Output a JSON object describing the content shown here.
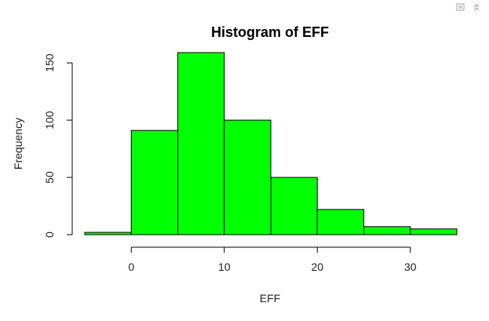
{
  "toolbar": {
    "icons": [
      "popout-icon",
      "collapse-up-icon"
    ]
  },
  "colors": {
    "bar_fill": "#00ff00",
    "bar_stroke": "#000000",
    "axis": "#000000"
  },
  "chart_data": {
    "type": "bar",
    "title": "Histogram of EFF",
    "xlabel": "EFF",
    "ylabel": "Frequency",
    "bins": [
      {
        "start": -5,
        "end": 0,
        "count": 2
      },
      {
        "start": 0,
        "end": 5,
        "count": 91
      },
      {
        "start": 5,
        "end": 10,
        "count": 159
      },
      {
        "start": 10,
        "end": 15,
        "count": 100
      },
      {
        "start": 15,
        "end": 20,
        "count": 50
      },
      {
        "start": 20,
        "end": 25,
        "count": 22
      },
      {
        "start": 25,
        "end": 30,
        "count": 7
      },
      {
        "start": 30,
        "end": 35,
        "count": 5
      }
    ],
    "xticks": [
      0,
      10,
      20,
      30
    ],
    "yticks": [
      0,
      50,
      100,
      150
    ],
    "xlim": [
      -5,
      35
    ],
    "ylim": [
      0,
      159
    ],
    "grid": false,
    "legend": "none"
  }
}
